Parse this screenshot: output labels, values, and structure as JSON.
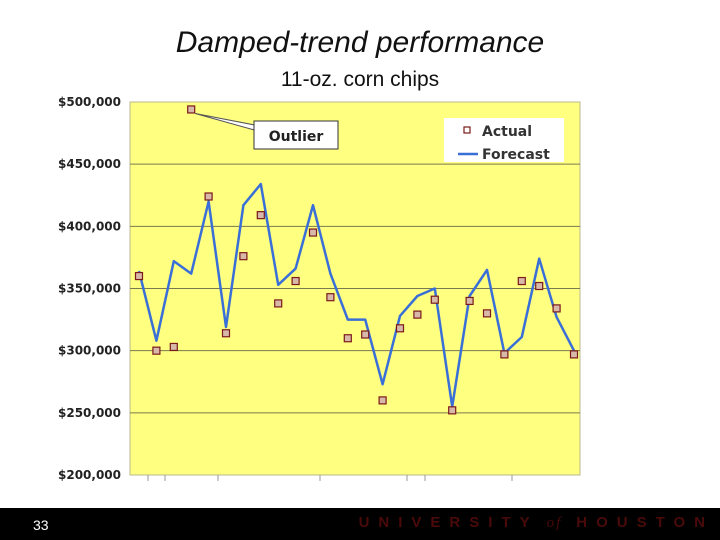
{
  "slide": {
    "page_number": "33",
    "footer_brand_1": "UNIVERSITY",
    "footer_brand_of": "of",
    "footer_brand_2": "HOUSTON"
  },
  "colors": {
    "plot_background": "#FFFF80",
    "forecast_line": "#3A6FD8",
    "actual_marker_fill": "#D8B8A8",
    "actual_marker_stroke": "#7A1A1A",
    "gridline": "#7A7A50",
    "footer_bg": "#000000"
  },
  "chart_data": {
    "type": "line",
    "title": "Damped-trend performance",
    "subtitle": "11-oz. corn chips",
    "xlabel": "",
    "ylabel": "",
    "ylim": [
      200000,
      500000
    ],
    "yticks": [
      200000,
      250000,
      300000,
      350000,
      400000,
      450000,
      500000
    ],
    "ytick_labels": [
      "$200,000",
      "$250,000",
      "$300,000",
      "$350,000",
      "$400,000",
      "$450,000",
      "$500,000"
    ],
    "grid": true,
    "legend": {
      "position": "top-right",
      "entries": [
        "Actual",
        "Forecast"
      ]
    },
    "annotation": {
      "text": "Outlier",
      "target_index": 3
    },
    "x": [
      1,
      2,
      3,
      4,
      5,
      6,
      7,
      8,
      9,
      10,
      11,
      12,
      13,
      14,
      15,
      16,
      17,
      18,
      19,
      20,
      21,
      22,
      23,
      24,
      25,
      26
    ],
    "series": [
      {
        "name": "Actual",
        "style": "marker",
        "values": [
          360000,
          300000,
          303000,
          494000,
          424000,
          314000,
          376000,
          409000,
          338000,
          356000,
          395000,
          343000,
          310000,
          313000,
          260000,
          318000,
          329000,
          341000,
          252000,
          340000,
          330000,
          297000,
          356000,
          352000,
          334000,
          297000
        ]
      },
      {
        "name": "Forecast",
        "style": "line",
        "values": [
          364000,
          308000,
          372000,
          362000,
          420000,
          319000,
          417000,
          434000,
          353000,
          366000,
          417000,
          362000,
          325000,
          325000,
          273000,
          328000,
          344000,
          350000,
          255000,
          344000,
          365000,
          298000,
          311000,
          374000,
          327000,
          300000
        ]
      }
    ]
  }
}
